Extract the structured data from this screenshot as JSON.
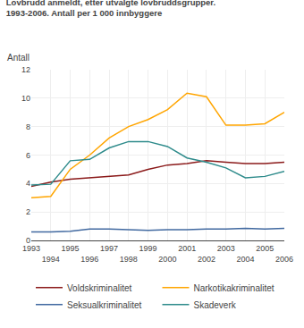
{
  "chart_data": {
    "type": "line",
    "title": "Lovbrudd anmeldt, etter utvalgte lovbruddsgrupper.",
    "subtitle": "1993-2006. Antall per 1 000 innbyggere",
    "ylabel": "Antall",
    "x": [
      1993,
      1994,
      1995,
      1996,
      1997,
      1998,
      1999,
      2000,
      2001,
      2002,
      2003,
      2004,
      2005,
      2006
    ],
    "series": [
      {
        "name": "Voldskriminalitet",
        "color": "#8B1A1A",
        "values": [
          3.8,
          4.1,
          4.3,
          4.4,
          4.5,
          4.6,
          5.0,
          5.3,
          5.4,
          5.6,
          5.5,
          5.4,
          5.4,
          5.5
        ]
      },
      {
        "name": "Narkotikakriminalitet",
        "color": "#FFA500",
        "values": [
          3.0,
          3.1,
          5.0,
          6.0,
          7.2,
          8.0,
          8.5,
          9.2,
          10.35,
          10.1,
          8.1,
          8.1,
          8.2,
          9.0
        ]
      },
      {
        "name": "Seksualkriminalitet",
        "color": "#4169A0",
        "values": [
          0.6,
          0.6,
          0.65,
          0.8,
          0.8,
          0.75,
          0.7,
          0.75,
          0.75,
          0.8,
          0.8,
          0.85,
          0.8,
          0.85
        ]
      },
      {
        "name": "Skadeverk",
        "color": "#2E8B8B",
        "values": [
          3.9,
          3.95,
          5.6,
          5.7,
          6.5,
          6.95,
          6.95,
          6.6,
          5.8,
          5.5,
          5.1,
          4.4,
          4.5,
          4.85
        ]
      }
    ],
    "xlim": [
      1993,
      2006
    ],
    "xticks": [
      1993,
      1994,
      1995,
      1996,
      1997,
      1998,
      1999,
      2000,
      2001,
      2002,
      2003,
      2004,
      2005,
      2006
    ],
    "ylim": [
      0,
      12
    ],
    "yticks": [
      0,
      2,
      4,
      6,
      8,
      10,
      12
    ],
    "grid": true,
    "legend": "bottom"
  }
}
